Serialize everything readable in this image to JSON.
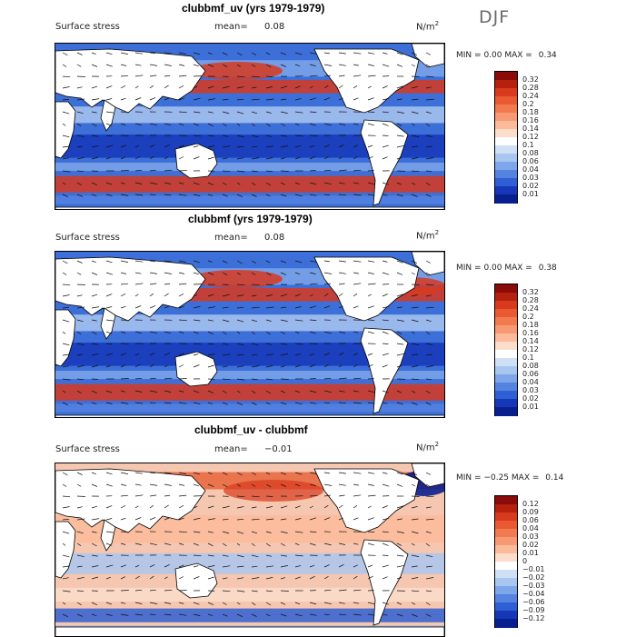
{
  "season": "DJF",
  "panels": [
    {
      "title": "clubbmf_uv (yrs 1979-1979)",
      "field": "Surface stress",
      "mean_label": "mean=",
      "mean_value": "0.08",
      "units": "N/m",
      "units_sup": "2",
      "min_label": "MIN =",
      "min_value": "0.00",
      "max_label": "MAX =",
      "max_value": "0.34",
      "legend_levels": [
        "0.32",
        "0.28",
        "0.24",
        "0.2",
        "0.18",
        "0.16",
        "0.14",
        "0.12",
        "0.1",
        "0.08",
        "0.06",
        "0.04",
        "0.03",
        "0.02",
        "0.01"
      ],
      "legend_colors": [
        "#8b0a0a",
        "#b5200f",
        "#d83a1e",
        "#ea5a32",
        "#f27a4f",
        "#f79a73",
        "#fbbb9b",
        "#fcdccb",
        "#ffffff",
        "#cfe0f6",
        "#a9c6f0",
        "#7ea6ea",
        "#5483e0",
        "#2f5fd4",
        "#1537b8",
        "#0a1f8f"
      ]
    },
    {
      "title": "clubbmf (yrs 1979-1979)",
      "field": "Surface stress",
      "mean_label": "mean=",
      "mean_value": "0.08",
      "units": "N/m",
      "units_sup": "2",
      "min_label": "MIN =",
      "min_value": "0.00",
      "max_label": "MAX =",
      "max_value": "0.38",
      "legend_levels": [
        "0.32",
        "0.28",
        "0.24",
        "0.2",
        "0.18",
        "0.16",
        "0.14",
        "0.12",
        "0.1",
        "0.08",
        "0.06",
        "0.04",
        "0.03",
        "0.02",
        "0.01"
      ],
      "legend_colors": [
        "#8b0a0a",
        "#b5200f",
        "#d83a1e",
        "#ea5a32",
        "#f27a4f",
        "#f79a73",
        "#fbbb9b",
        "#fcdccb",
        "#ffffff",
        "#cfe0f6",
        "#a9c6f0",
        "#7ea6ea",
        "#5483e0",
        "#2f5fd4",
        "#1537b8",
        "#0a1f8f"
      ]
    },
    {
      "title": "clubbmf_uv - clubbmf",
      "field": "Surface stress",
      "mean_label": "mean=",
      "mean_value": "−0.01",
      "units": "N/m",
      "units_sup": "2",
      "min_label": "MIN =",
      "min_value": "−0.25",
      "max_label": "MAX =",
      "max_value": "0.14",
      "legend_levels": [
        "0.12",
        "0.09",
        "0.06",
        "0.04",
        "0.03",
        "0.02",
        "0.01",
        "0",
        "−0.01",
        "−0.02",
        "−0.03",
        "−0.04",
        "−0.06",
        "−0.09",
        "−0.12"
      ],
      "legend_colors": [
        "#8b0a0a",
        "#b5200f",
        "#d83a1e",
        "#ea5a32",
        "#f27a4f",
        "#f79a73",
        "#fbbb9b",
        "#fcdccb",
        "#ffffff",
        "#cfe0f6",
        "#a9c6f0",
        "#7ea6ea",
        "#5483e0",
        "#2f5fd4",
        "#1537b8",
        "#0a1f8f"
      ]
    }
  ]
}
